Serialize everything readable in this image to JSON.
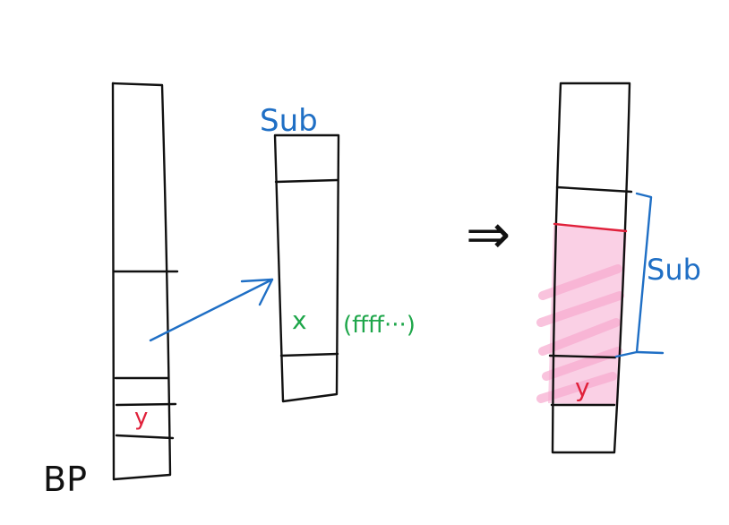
{
  "labels": {
    "bp": "BP",
    "sub_top": "Sub",
    "sub_bracket": "Sub",
    "y_left": "y",
    "y_right": "y",
    "x_value": "x",
    "x_note": "(ffff···)"
  },
  "arrow_symbol": "⇒",
  "colors": {
    "ink": "#111111",
    "blue": "#1f6fc5",
    "red": "#e0203a",
    "green": "#1ea64a",
    "pink": "#f6a9cf"
  }
}
